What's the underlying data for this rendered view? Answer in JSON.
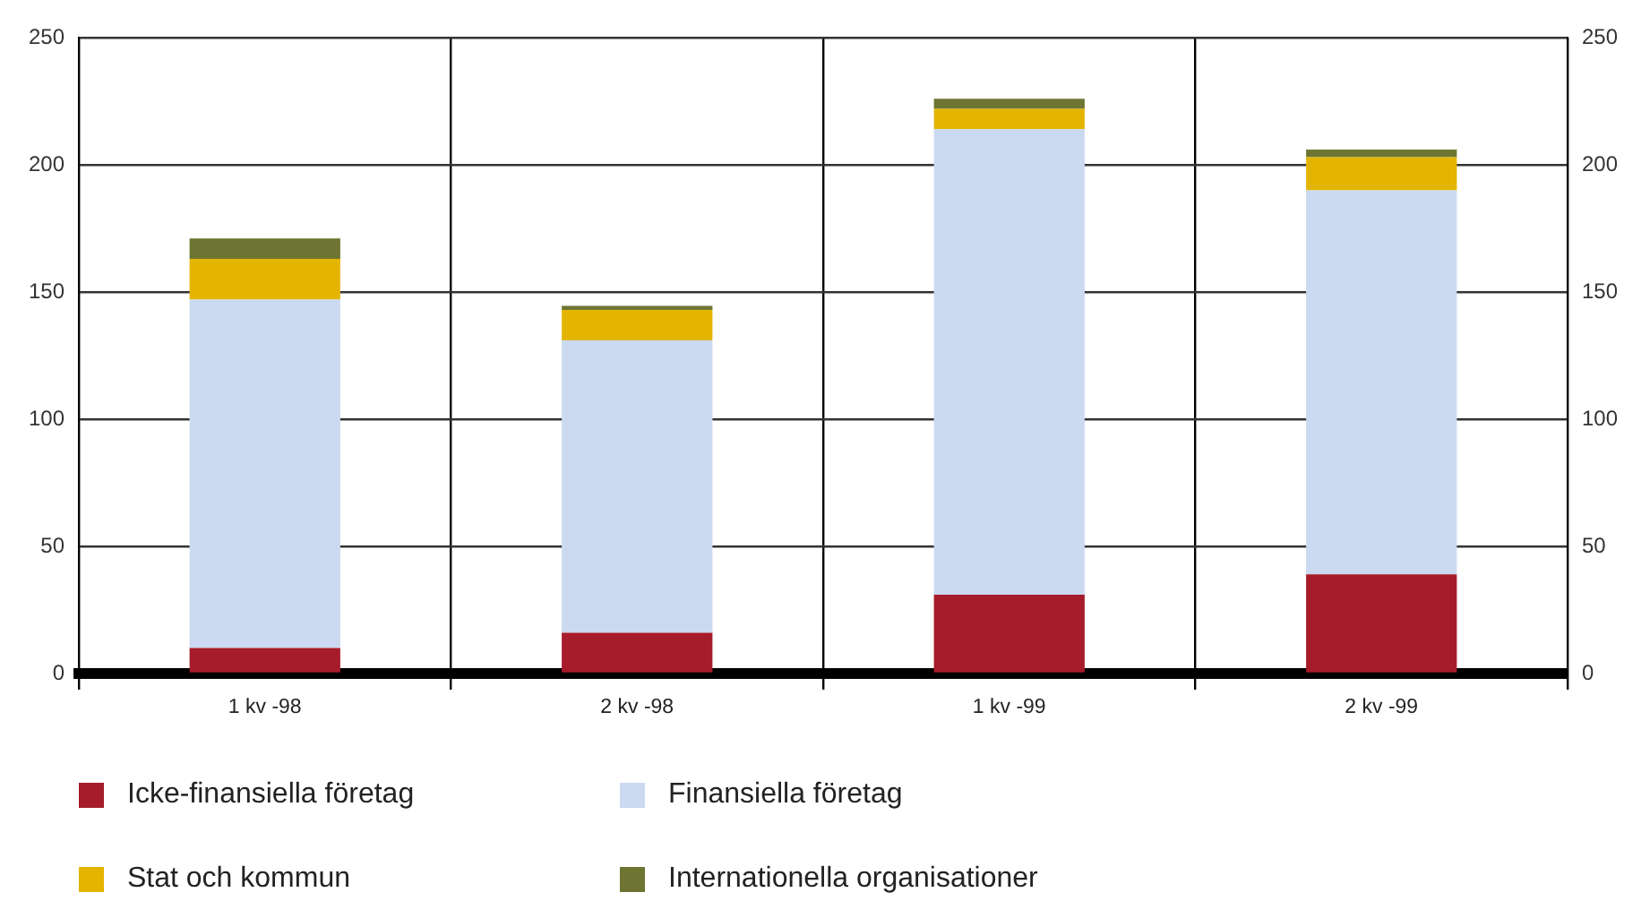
{
  "chart_data": {
    "type": "bar",
    "stacked": true,
    "categories": [
      "1 kv -98",
      "2 kv -98",
      "1 kv -99",
      "2 kv -99"
    ],
    "series": [
      {
        "name": "Icke-finansiella företag",
        "color": "#a61c2a",
        "values": [
          10,
          16,
          31,
          39
        ]
      },
      {
        "name": "Finansiella företag",
        "color": "#cbdaf0",
        "values": [
          137,
          115,
          183,
          151
        ]
      },
      {
        "name": "Stat och kommun",
        "color": "#e3b400",
        "values": [
          16,
          12,
          8,
          13
        ]
      },
      {
        "name": "Internationella organisationer",
        "color": "#6e7533",
        "values": [
          8,
          1.5,
          4,
          3
        ]
      }
    ],
    "ylim": [
      0,
      250
    ],
    "yticks": [
      0,
      50,
      100,
      150,
      200,
      250
    ],
    "y2lim": [
      0,
      250
    ],
    "y2ticks": [
      0,
      50,
      100,
      150,
      200,
      250
    ],
    "grid": true,
    "legend": "bottom"
  }
}
